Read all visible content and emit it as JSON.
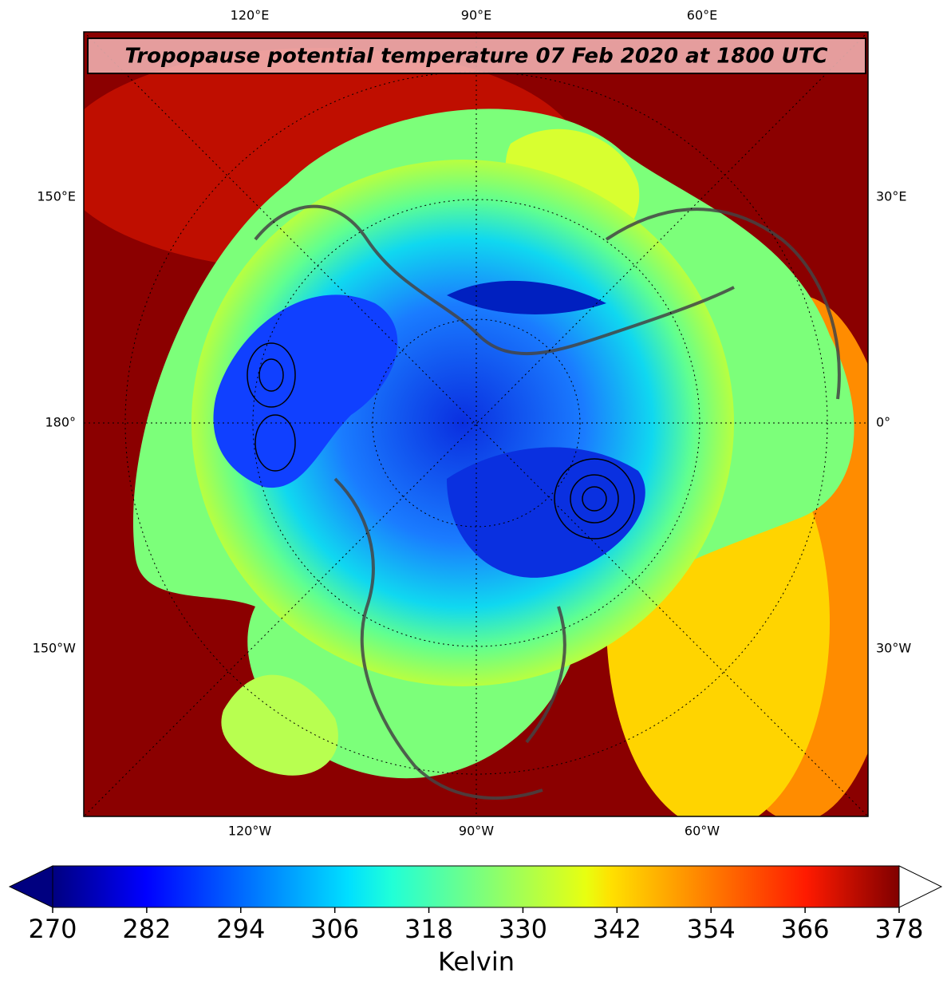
{
  "title": "Tropopause potential temperature 07 Feb 2020 at 1800 UTC",
  "map": {
    "top_labels": [
      "120°E",
      "90°E",
      "60°E"
    ],
    "bottom_labels": [
      "120°W",
      "90°W",
      "60°W"
    ],
    "left_labels": [
      "150°E",
      "180°",
      "150°W"
    ],
    "right_labels": [
      "30°E",
      "0°",
      "30°W"
    ]
  },
  "colorbar": {
    "label": "Kelvin",
    "lim": [
      270,
      378
    ],
    "ticks": [
      270,
      282,
      294,
      306,
      318,
      330,
      342,
      354,
      366,
      378
    ]
  }
}
